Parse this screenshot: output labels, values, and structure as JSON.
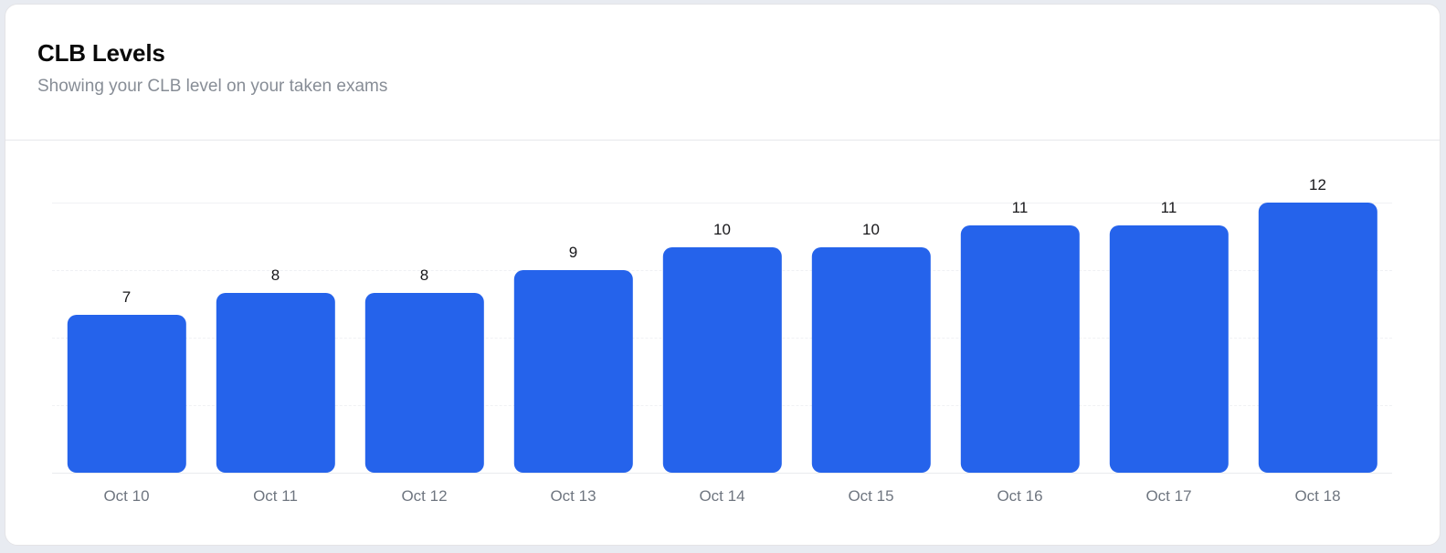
{
  "page": {
    "background_color": "#e8ebf1"
  },
  "card": {
    "title": "CLB Levels",
    "subtitle": "Showing your CLB level on your taken exams",
    "background_color": "#ffffff",
    "border_color": "#e4e4e7"
  },
  "chart_data": {
    "type": "bar",
    "title": "CLB Levels",
    "subtitle": "Showing your CLB level on your taken exams",
    "categories": [
      "Oct 10",
      "Oct 11",
      "Oct 12",
      "Oct 13",
      "Oct 14",
      "Oct 15",
      "Oct 16",
      "Oct 17",
      "Oct 18"
    ],
    "values": [
      7,
      8,
      8,
      9,
      10,
      10,
      11,
      11,
      12
    ],
    "xlabel": "",
    "ylabel": "",
    "ylim": [
      0,
      12
    ],
    "gridline_values": [
      0,
      3,
      6,
      9,
      12
    ],
    "grid": true,
    "legend": false,
    "value_labels_shown": true,
    "bar_color": "#2563eb",
    "gridline_color": "#f0f1f4",
    "axis_label_color": "#6f7680",
    "value_label_color": "#17171a"
  }
}
